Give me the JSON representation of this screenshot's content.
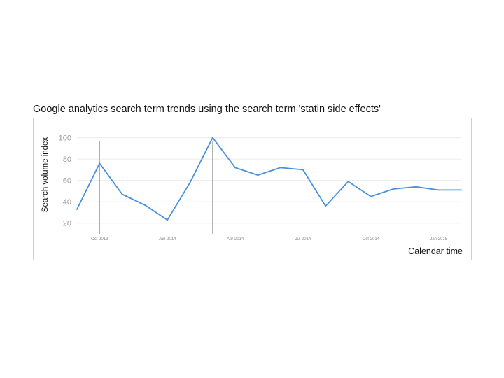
{
  "title": "Google analytics search term trends using the search term 'statin side effects'",
  "chart_data": {
    "type": "line",
    "title": "Google analytics search term trends using the search term 'statin side effects'",
    "xlabel": "Calendar time",
    "ylabel": "Search volume index",
    "x_ticks": [
      "Oct 2013",
      "Jan 2014",
      "Apr 2014",
      "Jul 2014",
      "Oct 2014",
      "Jan 2015"
    ],
    "y_ticks": [
      20,
      40,
      60,
      80,
      100
    ],
    "ylim": [
      10,
      105
    ],
    "grid": true,
    "line_color": "#4a90d9",
    "series": [
      {
        "x": [
          "2013-09-01",
          "2013-10-01",
          "2013-11-01",
          "2013-12-01",
          "2014-01-01",
          "2014-02-01",
          "2014-03-01",
          "2014-04-01",
          "2014-05-01",
          "2014-06-01",
          "2014-07-01",
          "2014-08-01",
          "2014-09-01",
          "2014-10-01",
          "2014-11-01",
          "2014-12-01",
          "2015-01-01",
          "2015-02-01"
        ],
        "values": [
          33,
          76,
          47,
          37,
          23,
          58,
          100,
          72,
          65,
          72,
          70,
          36,
          59,
          45,
          52,
          54,
          51,
          51
        ]
      }
    ],
    "markers": [
      {
        "x": "2013-10-01"
      },
      {
        "x": "2014-03-01"
      }
    ]
  }
}
